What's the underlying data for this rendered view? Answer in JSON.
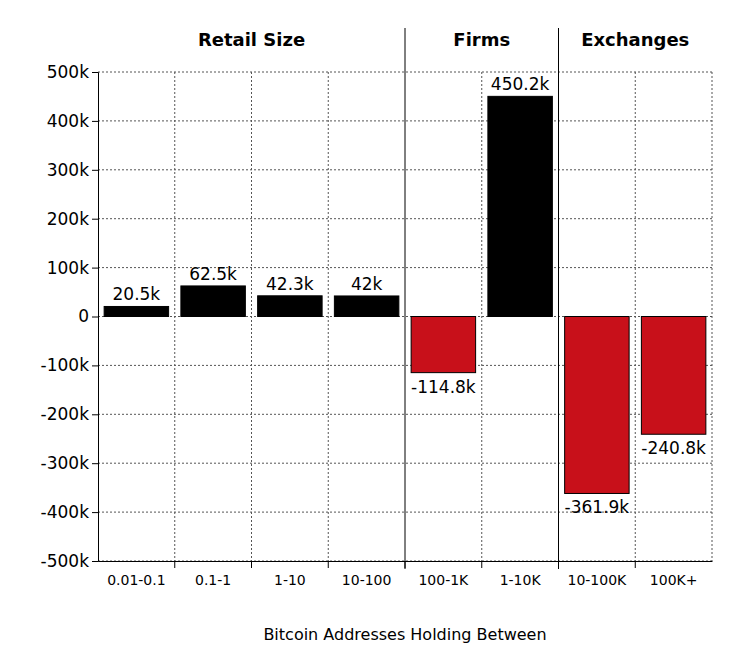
{
  "chart_data": {
    "type": "bar",
    "x_label": "Bitcoin Addresses Holding Between",
    "categories": [
      "0.01-0.1",
      "0.1-1",
      "1-10",
      "10-100",
      "100-1K",
      "1-10K",
      "10-100K",
      "100K+"
    ],
    "values": [
      20500,
      62500,
      42300,
      42000,
      -114800,
      450200,
      -361900,
      -240800
    ],
    "value_labels": [
      "20.5k",
      "62.5k",
      "42.3k",
      "42k",
      "-114.8k",
      "450.2k",
      "-361.9k",
      "-240.8k"
    ],
    "colors": [
      "#000000",
      "#000000",
      "#000000",
      "#000000",
      "#c8101a",
      "#000000",
      "#c8101a",
      "#c8101a"
    ],
    "groups": [
      {
        "name": "Retail Size",
        "categories": [
          "0.01-0.1",
          "0.1-1",
          "1-10",
          "10-100"
        ]
      },
      {
        "name": "Firms",
        "categories": [
          "100-1K",
          "1-10K"
        ]
      },
      {
        "name": "Exchanges",
        "categories": [
          "10-100K",
          "100K+"
        ]
      }
    ],
    "ylim": [
      -500000,
      500000
    ],
    "yticks": [
      {
        "value": -500000,
        "label": "-500k"
      },
      {
        "value": -400000,
        "label": "-400k"
      },
      {
        "value": -300000,
        "label": "-300k"
      },
      {
        "value": -200000,
        "label": "-200k"
      },
      {
        "value": -100000,
        "label": "-100k"
      },
      0,
      {
        "value": 100000,
        "label": "100k"
      },
      {
        "value": 200000,
        "label": "200k"
      },
      {
        "value": 300000,
        "label": "300k"
      },
      {
        "value": 400000,
        "label": "400k"
      },
      {
        "value": 500000,
        "label": "500k"
      }
    ],
    "grid": true,
    "data_labels": true
  }
}
